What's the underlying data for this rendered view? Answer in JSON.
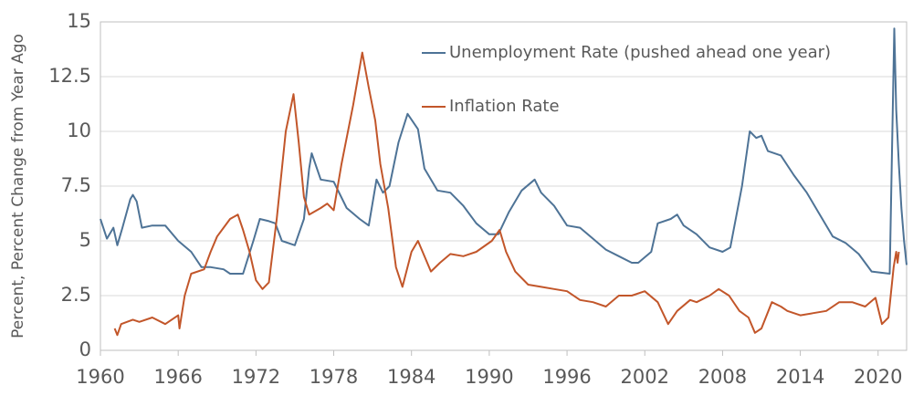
{
  "chart_data": {
    "type": "line",
    "ylabel": "Percent, Percent Change from Year Ago",
    "xlim": [
      1960,
      2022.2
    ],
    "ylim": [
      0,
      15
    ],
    "xticks": [
      1960,
      1966,
      1972,
      1978,
      1984,
      1990,
      1996,
      2002,
      2008,
      2014,
      2020
    ],
    "yticks": [
      0,
      2.5,
      5,
      7.5,
      10,
      12.5,
      15
    ],
    "grid": true,
    "legend": "upper right",
    "series": [
      {
        "name": "Unemployment Rate (pushed ahead one year)",
        "color": "#4e7396",
        "x": [
          1960,
          1960.5,
          1961,
          1961.3,
          1961.7,
          1962.3,
          1962.5,
          1962.8,
          1963.2,
          1964,
          1965,
          1966,
          1967,
          1967.8,
          1968.5,
          1969.5,
          1970,
          1971,
          1971.8,
          1972.3,
          1973,
          1973.5,
          1974,
          1975,
          1975.7,
          1976.1,
          1976.3,
          1977,
          1978,
          1979,
          1980,
          1980.7,
          1981.3,
          1981.8,
          1982.3,
          1983,
          1983.7,
          1984.5,
          1985,
          1986,
          1987,
          1988,
          1989,
          1990,
          1990.7,
          1991.5,
          1992.5,
          1993.5,
          1994,
          1995,
          1996,
          1997,
          1998,
          1999,
          2000,
          2001,
          2001.5,
          2002.5,
          2003,
          2004,
          2004.5,
          2005,
          2006,
          2007,
          2008,
          2008.6,
          2009.5,
          2010.1,
          2010.6,
          2011,
          2011.5,
          2012.5,
          2013.5,
          2014.5,
          2015.5,
          2016.5,
          2017.5,
          2018.5,
          2019.5,
          2020.9,
          2021.25,
          2021.4,
          2021.6,
          2021.8,
          2022.0,
          2022.2
        ],
        "values": [
          6.0,
          5.1,
          5.6,
          4.8,
          5.6,
          6.9,
          7.1,
          6.8,
          5.6,
          5.7,
          5.7,
          5.0,
          4.5,
          3.8,
          3.8,
          3.7,
          3.5,
          3.5,
          5.0,
          6.0,
          5.9,
          5.8,
          5.0,
          4.8,
          6.0,
          8.3,
          9.0,
          7.8,
          7.7,
          6.5,
          6.0,
          5.7,
          7.8,
          7.2,
          7.5,
          9.5,
          10.8,
          10.1,
          8.3,
          7.3,
          7.2,
          6.6,
          5.8,
          5.3,
          5.3,
          6.3,
          7.3,
          7.8,
          7.2,
          6.6,
          5.7,
          5.6,
          5.1,
          4.6,
          4.3,
          4.0,
          4.0,
          4.5,
          5.8,
          6.0,
          6.2,
          5.7,
          5.3,
          4.7,
          4.5,
          4.7,
          7.5,
          10.0,
          9.7,
          9.8,
          9.1,
          8.9,
          8.0,
          7.2,
          6.2,
          5.2,
          4.9,
          4.4,
          3.6,
          3.5,
          14.7,
          11.0,
          8.5,
          6.5,
          5.0,
          3.9
        ]
      },
      {
        "name": "Inflation Rate",
        "color": "#c2562a",
        "x": [
          1961.1,
          1961.3,
          1961.6,
          1962.5,
          1963,
          1964,
          1965,
          1966,
          1966.1,
          1966.5,
          1967,
          1968,
          1968.5,
          1969,
          1970,
          1970.6,
          1971,
          1971.5,
          1972,
          1972.5,
          1973,
          1973.6,
          1974.3,
          1974.9,
          1975.3,
          1975.7,
          1976.1,
          1977,
          1977.5,
          1978,
          1978.6,
          1979.5,
          1980.2,
          1980.7,
          1981.2,
          1981.6,
          1982.2,
          1982.8,
          1983.3,
          1984,
          1984.5,
          1985.5,
          1986.2,
          1987,
          1988,
          1989,
          1990.2,
          1990.8,
          1991.3,
          1992,
          1993,
          1994,
          1995,
          1996,
          1997,
          1998,
          1999,
          2000,
          2001,
          2002,
          2003,
          2003.8,
          2004.5,
          2005.5,
          2006,
          2007,
          2007.7,
          2008.5,
          2009.3,
          2010,
          2010.5,
          2011,
          2011.8,
          2012.5,
          2013,
          2014,
          2015,
          2016,
          2017,
          2018,
          2019,
          2019.8,
          2020.3,
          2020.8,
          2021.2,
          2021.4,
          2021.5,
          2021.6
        ],
        "values": [
          1.0,
          0.7,
          1.2,
          1.4,
          1.3,
          1.5,
          1.2,
          1.6,
          1.0,
          2.5,
          3.5,
          3.7,
          4.5,
          5.2,
          6.0,
          6.2,
          5.5,
          4.5,
          3.2,
          2.8,
          3.1,
          6.0,
          10.0,
          11.7,
          9.5,
          7.0,
          6.2,
          6.5,
          6.7,
          6.4,
          8.5,
          11.2,
          13.6,
          12.0,
          10.5,
          8.5,
          6.5,
          3.8,
          2.9,
          4.5,
          5.0,
          3.6,
          4.0,
          4.4,
          4.3,
          4.5,
          5.0,
          5.5,
          4.5,
          3.6,
          3.0,
          2.9,
          2.8,
          2.7,
          2.3,
          2.2,
          2.0,
          2.5,
          2.5,
          2.7,
          2.2,
          1.2,
          1.8,
          2.3,
          2.2,
          2.5,
          2.8,
          2.5,
          1.8,
          1.5,
          0.8,
          1.0,
          2.2,
          2.0,
          1.8,
          1.6,
          1.7,
          1.8,
          2.2,
          2.2,
          2.0,
          2.4,
          1.2,
          1.5,
          3.8,
          4.5,
          4.0,
          4.5
        ]
      }
    ]
  }
}
